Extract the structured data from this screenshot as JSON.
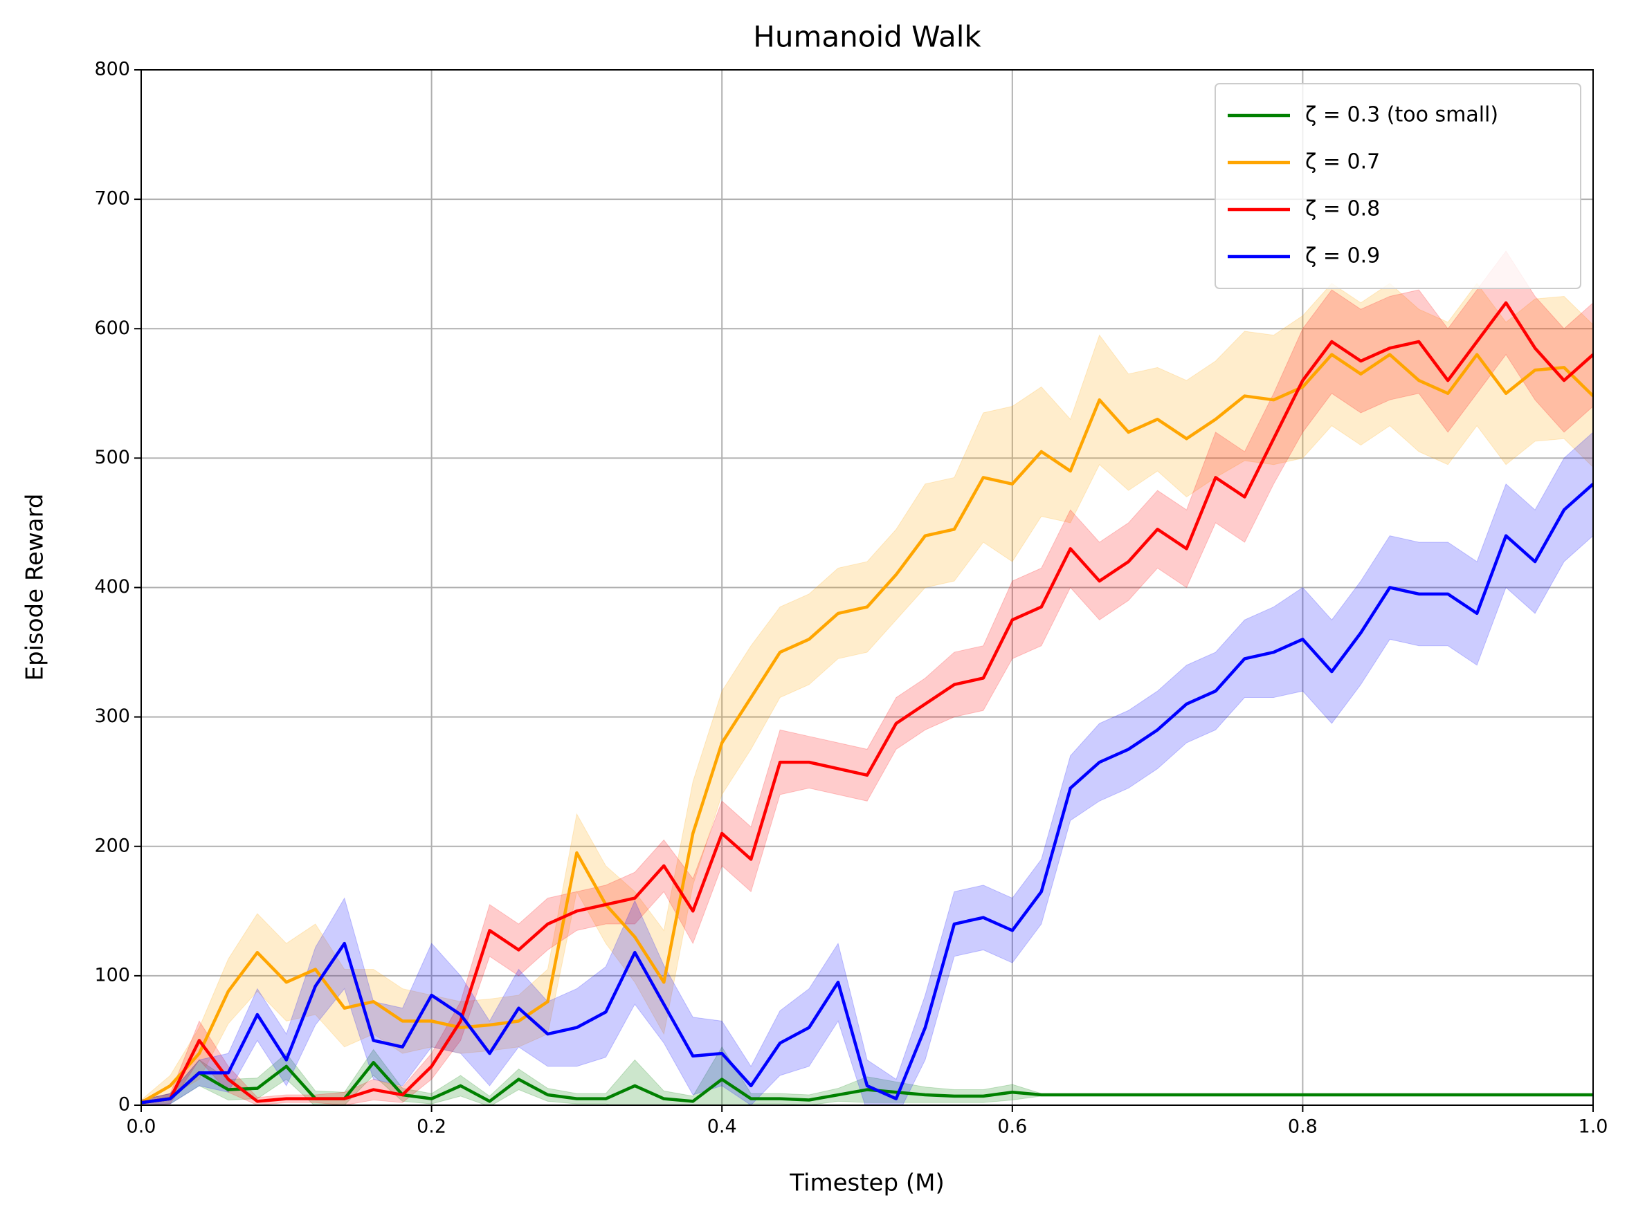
{
  "chart_data": {
    "type": "line",
    "title": "Humanoid Walk",
    "x_label": "Timestep (M)",
    "y_label": "Episode Reward",
    "x": [
      0,
      0.02,
      0.04,
      0.06,
      0.08,
      0.1,
      0.12,
      0.14,
      0.16,
      0.18,
      0.2,
      0.22,
      0.24,
      0.26,
      0.28,
      0.3,
      0.32,
      0.34,
      0.36,
      0.38,
      0.4,
      0.42,
      0.44,
      0.46,
      0.48,
      0.5,
      0.52,
      0.54,
      0.56,
      0.58,
      0.6,
      0.62,
      0.64,
      0.66,
      0.68,
      0.7,
      0.72,
      0.74,
      0.76,
      0.78,
      0.8,
      0.82,
      0.84,
      0.86,
      0.88,
      0.9,
      0.92,
      0.94,
      0.96,
      0.98,
      1.0
    ],
    "series": [
      {
        "name": "ζ = 0.3 (too small)",
        "color": "#008000",
        "values": [
          2,
          5,
          25,
          12,
          13,
          30,
          5,
          5,
          33,
          8,
          5,
          15,
          3,
          20,
          8,
          5,
          5,
          15,
          5,
          3,
          20,
          5,
          5,
          4,
          8,
          12,
          10,
          8,
          7,
          7,
          10,
          8,
          8,
          8,
          8,
          8,
          8,
          8,
          8,
          8,
          8,
          8,
          8,
          8,
          8,
          8,
          8,
          8,
          8,
          8,
          8
        ],
        "errors": [
          2,
          4,
          10,
          8,
          8,
          10,
          6,
          5,
          10,
          5,
          4,
          8,
          4,
          8,
          5,
          4,
          4,
          20,
          6,
          4,
          25,
          4,
          4,
          4,
          5,
          10,
          8,
          6,
          5,
          5,
          6,
          1,
          1,
          1,
          1,
          1,
          1,
          1,
          1,
          1,
          1,
          1,
          1,
          1,
          1,
          1,
          1,
          1,
          1,
          1,
          1
        ]
      },
      {
        "name": "ζ = 0.7",
        "color": "#ffa500",
        "values": [
          2,
          15,
          40,
          88,
          118,
          95,
          105,
          75,
          80,
          65,
          65,
          60,
          62,
          65,
          80,
          195,
          155,
          130,
          95,
          210,
          280,
          315,
          350,
          360,
          380,
          385,
          410,
          440,
          445,
          485,
          480,
          505,
          490,
          545,
          520,
          530,
          515,
          530,
          548,
          545,
          555,
          580,
          565,
          580,
          560,
          550,
          580,
          550,
          568,
          570,
          548
        ],
        "errors": [
          2,
          8,
          20,
          25,
          30,
          30,
          35,
          30,
          25,
          25,
          20,
          20,
          20,
          20,
          25,
          30,
          30,
          35,
          40,
          40,
          40,
          40,
          35,
          35,
          35,
          35,
          35,
          40,
          40,
          50,
          60,
          50,
          40,
          50,
          45,
          40,
          45,
          45,
          50,
          50,
          55,
          55,
          55,
          55,
          55,
          55,
          55,
          55,
          55,
          55,
          55
        ]
      },
      {
        "name": "ζ = 0.8",
        "color": "#ff0000",
        "values": [
          2,
          5,
          50,
          20,
          3,
          5,
          5,
          5,
          12,
          8,
          30,
          65,
          135,
          120,
          140,
          150,
          155,
          160,
          185,
          150,
          210,
          190,
          265,
          265,
          260,
          255,
          295,
          310,
          325,
          330,
          375,
          385,
          430,
          405,
          420,
          445,
          430,
          485,
          470,
          515,
          560,
          590,
          575,
          585,
          590,
          560,
          590,
          620,
          585,
          560,
          580
        ],
        "errors": [
          2,
          4,
          15,
          10,
          3,
          3,
          3,
          5,
          8,
          6,
          10,
          15,
          20,
          20,
          20,
          15,
          15,
          20,
          20,
          25,
          25,
          25,
          25,
          20,
          20,
          20,
          20,
          20,
          25,
          25,
          30,
          30,
          30,
          30,
          30,
          30,
          30,
          35,
          35,
          35,
          40,
          40,
          40,
          40,
          40,
          40,
          40,
          40,
          40,
          40,
          40
        ]
      },
      {
        "name": "ζ = 0.9",
        "color": "#0000ff",
        "values": [
          2,
          5,
          25,
          25,
          70,
          35,
          92,
          125,
          50,
          45,
          85,
          70,
          40,
          75,
          55,
          60,
          72,
          118,
          78,
          38,
          40,
          15,
          48,
          60,
          95,
          15,
          5,
          60,
          140,
          145,
          135,
          165,
          245,
          265,
          275,
          290,
          310,
          320,
          345,
          350,
          360,
          335,
          365,
          400,
          395,
          395,
          380,
          440,
          420,
          460,
          480
        ],
        "errors": [
          2,
          4,
          10,
          15,
          20,
          20,
          30,
          35,
          30,
          30,
          40,
          30,
          25,
          30,
          25,
          30,
          35,
          40,
          30,
          30,
          25,
          15,
          25,
          30,
          30,
          20,
          15,
          25,
          25,
          25,
          25,
          25,
          25,
          30,
          30,
          30,
          30,
          30,
          30,
          35,
          40,
          40,
          40,
          40,
          40,
          40,
          40,
          40,
          40,
          40,
          40
        ]
      }
    ],
    "xlim": [
      0,
      1
    ],
    "xticks": [
      {
        "value": 0,
        "label": "0.0"
      },
      0.2,
      0.4,
      0.6,
      0.8,
      {
        "value": 1,
        "label": "1.0"
      }
    ],
    "ylim": [
      0,
      800
    ],
    "yticks": [
      0,
      100,
      200,
      300,
      400,
      500,
      600,
      700,
      800
    ],
    "grid": true,
    "legend": "upper right"
  }
}
